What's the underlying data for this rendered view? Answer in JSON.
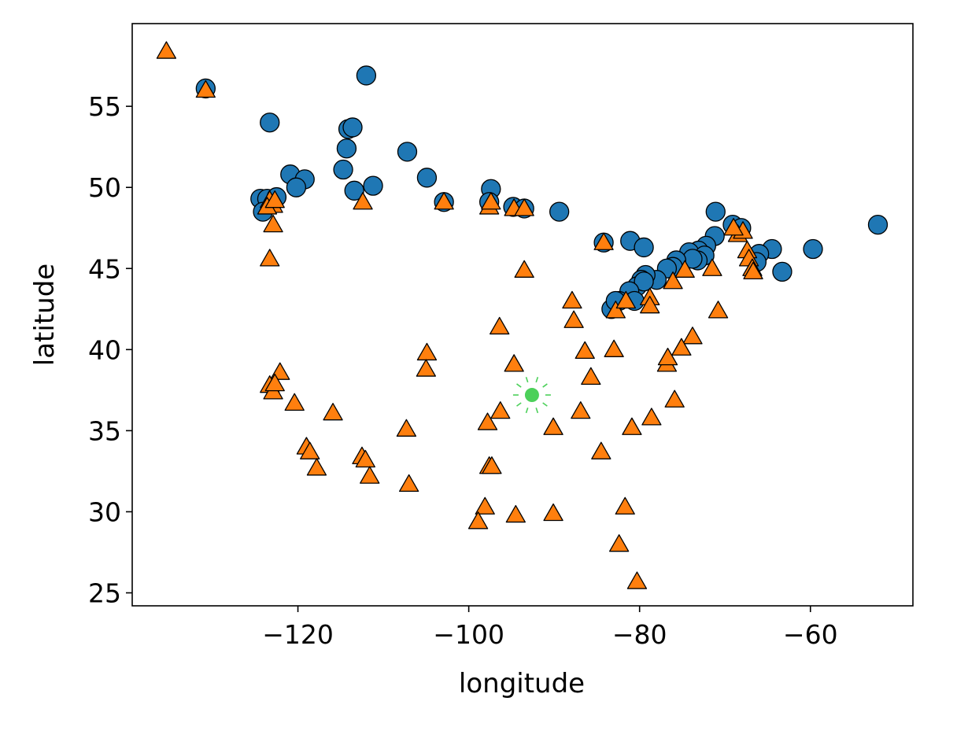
{
  "chart_data": {
    "type": "scatter",
    "xlabel": "longitude",
    "ylabel": "latitude",
    "xlim": [
      -139.4,
      -48.0
    ],
    "ylim": [
      24.2,
      60.1
    ],
    "xticks": [
      -120,
      -100,
      -80,
      -60
    ],
    "xtick_labels": [
      "−120",
      "−100",
      "−80",
      "−60"
    ],
    "yticks": [
      25,
      30,
      35,
      40,
      45,
      50,
      55
    ],
    "ytick_labels": [
      "25",
      "30",
      "35",
      "40",
      "45",
      "50",
      "55"
    ],
    "grid": false,
    "series": [
      {
        "marker": "circle",
        "color": "#1f77b4",
        "points": [
          [
            -130.8,
            56.1
          ],
          [
            -123.3,
            54.0
          ],
          [
            -112.0,
            56.9
          ],
          [
            -114.1,
            53.6
          ],
          [
            -113.6,
            53.7
          ],
          [
            -114.3,
            52.4
          ],
          [
            -114.7,
            51.1
          ],
          [
            -107.2,
            52.2
          ],
          [
            -104.9,
            50.6
          ],
          [
            -120.9,
            50.8
          ],
          [
            -119.2,
            50.5
          ],
          [
            -120.2,
            50.0
          ],
          [
            -113.4,
            49.8
          ],
          [
            -111.2,
            50.1
          ],
          [
            -124.4,
            49.3
          ],
          [
            -123.6,
            49.3
          ],
          [
            -122.5,
            49.4
          ],
          [
            -124.1,
            48.5
          ],
          [
            -102.9,
            49.1
          ],
          [
            -97.4,
            49.9
          ],
          [
            -97.6,
            49.1
          ],
          [
            -94.8,
            48.8
          ],
          [
            -93.5,
            48.7
          ],
          [
            -89.4,
            48.5
          ],
          [
            -84.2,
            46.6
          ],
          [
            -81.1,
            46.7
          ],
          [
            -79.5,
            46.3
          ],
          [
            -52.1,
            47.7
          ],
          [
            -59.7,
            46.2
          ],
          [
            -64.5,
            46.2
          ],
          [
            -63.3,
            44.8
          ],
          [
            -66.0,
            45.9
          ],
          [
            -66.3,
            45.4
          ],
          [
            -71.1,
            48.5
          ],
          [
            -69.1,
            47.7
          ],
          [
            -68.1,
            47.5
          ],
          [
            -71.2,
            47.0
          ],
          [
            -72.2,
            46.4
          ],
          [
            -73.1,
            46.1
          ],
          [
            -74.2,
            46.0
          ],
          [
            -72.4,
            45.8
          ],
          [
            -73.2,
            45.5
          ],
          [
            -73.8,
            45.6
          ],
          [
            -75.7,
            45.5
          ],
          [
            -76.1,
            45.1
          ],
          [
            -76.8,
            45.0
          ],
          [
            -78.0,
            44.3
          ],
          [
            -79.3,
            44.6
          ],
          [
            -79.8,
            44.3
          ],
          [
            -80.3,
            43.9
          ],
          [
            -79.5,
            44.2
          ],
          [
            -81.2,
            43.6
          ],
          [
            -82.4,
            43.0
          ],
          [
            -80.6,
            43.0
          ],
          [
            -83.3,
            42.5
          ],
          [
            -82.8,
            43.0
          ]
        ]
      },
      {
        "marker": "triangle",
        "color": "#ff7f0e",
        "points": [
          [
            -135.4,
            58.4
          ],
          [
            -130.8,
            56.0
          ],
          [
            -123.3,
            49.2
          ],
          [
            -122.9,
            48.9
          ],
          [
            -123.6,
            48.8
          ],
          [
            -122.7,
            49.2
          ],
          [
            -122.9,
            47.7
          ],
          [
            -123.3,
            45.6
          ],
          [
            -112.4,
            49.1
          ],
          [
            -102.9,
            49.1
          ],
          [
            -97.6,
            48.8
          ],
          [
            -97.4,
            49.1
          ],
          [
            -94.7,
            48.7
          ],
          [
            -93.5,
            48.7
          ],
          [
            -93.5,
            44.9
          ],
          [
            -84.2,
            46.6
          ],
          [
            -87.9,
            43.0
          ],
          [
            -87.7,
            41.8
          ],
          [
            -96.4,
            41.4
          ],
          [
            -104.9,
            39.8
          ],
          [
            -105.0,
            38.8
          ],
          [
            -94.7,
            39.1
          ],
          [
            -86.4,
            39.9
          ],
          [
            -85.7,
            38.3
          ],
          [
            -83.0,
            40.0
          ],
          [
            -82.8,
            42.4
          ],
          [
            -81.6,
            43.0
          ],
          [
            -78.8,
            43.2
          ],
          [
            -78.8,
            42.7
          ],
          [
            -76.1,
            44.2
          ],
          [
            -74.7,
            44.9
          ],
          [
            -71.5,
            45.0
          ],
          [
            -70.8,
            42.4
          ],
          [
            -73.8,
            40.8
          ],
          [
            -75.1,
            40.1
          ],
          [
            -76.8,
            39.1
          ],
          [
            -76.7,
            39.5
          ],
          [
            -75.9,
            36.9
          ],
          [
            -78.6,
            35.8
          ],
          [
            -80.9,
            35.2
          ],
          [
            -86.9,
            36.2
          ],
          [
            -84.5,
            33.7
          ],
          [
            -81.7,
            30.3
          ],
          [
            -82.4,
            28.0
          ],
          [
            -80.3,
            25.7
          ],
          [
            -90.1,
            35.2
          ],
          [
            -90.1,
            29.9
          ],
          [
            -96.3,
            36.2
          ],
          [
            -97.8,
            35.5
          ],
          [
            -97.6,
            32.8
          ],
          [
            -97.3,
            32.8
          ],
          [
            -98.1,
            30.3
          ],
          [
            -98.9,
            29.4
          ],
          [
            -94.5,
            29.8
          ],
          [
            -107.3,
            35.1
          ],
          [
            -107.0,
            31.7
          ],
          [
            -115.9,
            36.1
          ],
          [
            -112.5,
            33.4
          ],
          [
            -112.1,
            33.2
          ],
          [
            -111.6,
            32.2
          ],
          [
            -119.0,
            34.0
          ],
          [
            -118.6,
            33.7
          ],
          [
            -117.8,
            32.7
          ],
          [
            -120.4,
            36.7
          ],
          [
            -122.1,
            38.6
          ],
          [
            -123.3,
            37.8
          ],
          [
            -122.9,
            37.4
          ],
          [
            -122.7,
            37.9
          ],
          [
            -68.5,
            47.1
          ],
          [
            -67.9,
            47.3
          ],
          [
            -67.4,
            46.1
          ],
          [
            -67.2,
            45.6
          ],
          [
            -66.8,
            45.0
          ],
          [
            -66.7,
            44.8
          ],
          [
            -69.0,
            47.5
          ]
        ]
      }
    ],
    "highlight": {
      "color": "#4cd05a",
      "at": [
        -92.6,
        37.2
      ]
    }
  }
}
